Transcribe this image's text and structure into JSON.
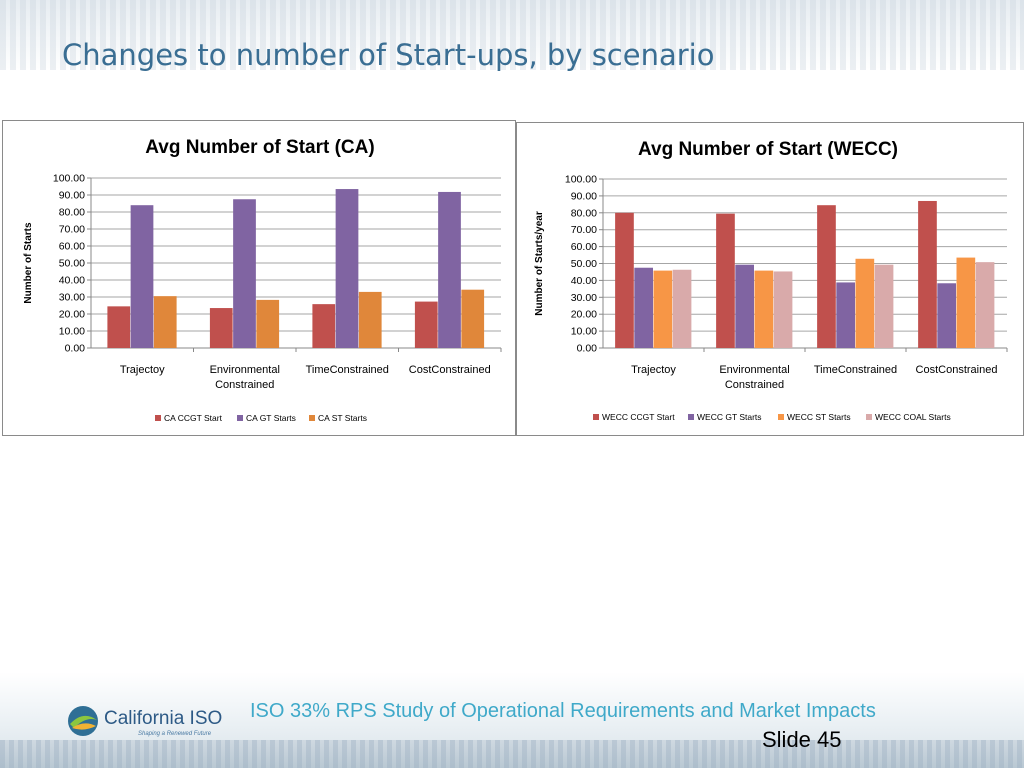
{
  "slide": {
    "title": "Changes to number of Start-ups, by scenario",
    "footer": "ISO 33% RPS Study of Operational Requirements and Market Impacts",
    "slide_number": "Slide 45",
    "logo_name": "California ISO",
    "logo_tagline": "Shaping a Renewed Future"
  },
  "chart_data": [
    {
      "type": "bar",
      "title": "Avg Number of Start (CA)",
      "xlabel": "",
      "ylabel": "Number of Starts",
      "ylim": [
        0,
        100
      ],
      "ytick_step": 10,
      "ytick_labels": [
        "0.00",
        "10.00",
        "20.00",
        "30.00",
        "40.00",
        "50.00",
        "60.00",
        "70.00",
        "80.00",
        "90.00",
        "100.00"
      ],
      "grid": true,
      "legend_position": "bottom",
      "categories": [
        [
          "Trajectoy"
        ],
        [
          "Environmental",
          "Constrained"
        ],
        [
          "TimeConstrained"
        ],
        [
          "CostConstrained"
        ]
      ],
      "series": [
        {
          "name": "CA CCGT Start",
          "color": "#c0504d",
          "values": [
            24.5,
            23.5,
            25.8,
            27.3
          ]
        },
        {
          "name": "CA GT Starts",
          "color": "#8064a2",
          "values": [
            84.0,
            87.5,
            93.5,
            91.8
          ]
        },
        {
          "name": "CA ST Starts",
          "color": "#e0873a",
          "values": [
            30.5,
            28.3,
            33.0,
            34.3
          ]
        }
      ]
    },
    {
      "type": "bar",
      "title": "Avg Number of Start (WECC)",
      "xlabel": "",
      "ylabel": "Number of Starts/year",
      "ylim": [
        0,
        100
      ],
      "ytick_step": 10,
      "ytick_labels": [
        "0.00",
        "10.00",
        "20.00",
        "30.00",
        "40.00",
        "50.00",
        "60.00",
        "70.00",
        "80.00",
        "90.00",
        "100.00"
      ],
      "grid": true,
      "legend_position": "bottom",
      "categories": [
        [
          "Trajectoy"
        ],
        [
          "Environmental",
          "Constrained"
        ],
        [
          "TimeConstrained"
        ],
        [
          "CostConstrained"
        ]
      ],
      "series": [
        {
          "name": "WECC CCGT Start",
          "color": "#c0504d",
          "values": [
            80.0,
            79.5,
            84.5,
            87.0
          ]
        },
        {
          "name": "WECC GT Starts",
          "color": "#8064a2",
          "values": [
            47.5,
            49.3,
            38.8,
            38.3
          ]
        },
        {
          "name": "WECC ST Starts",
          "color": "#f79646",
          "values": [
            45.8,
            45.8,
            52.8,
            53.5
          ]
        },
        {
          "name": "WECC COAL Starts",
          "color": "#d9aaaa",
          "values": [
            46.3,
            45.3,
            49.3,
            50.8
          ]
        }
      ]
    }
  ]
}
